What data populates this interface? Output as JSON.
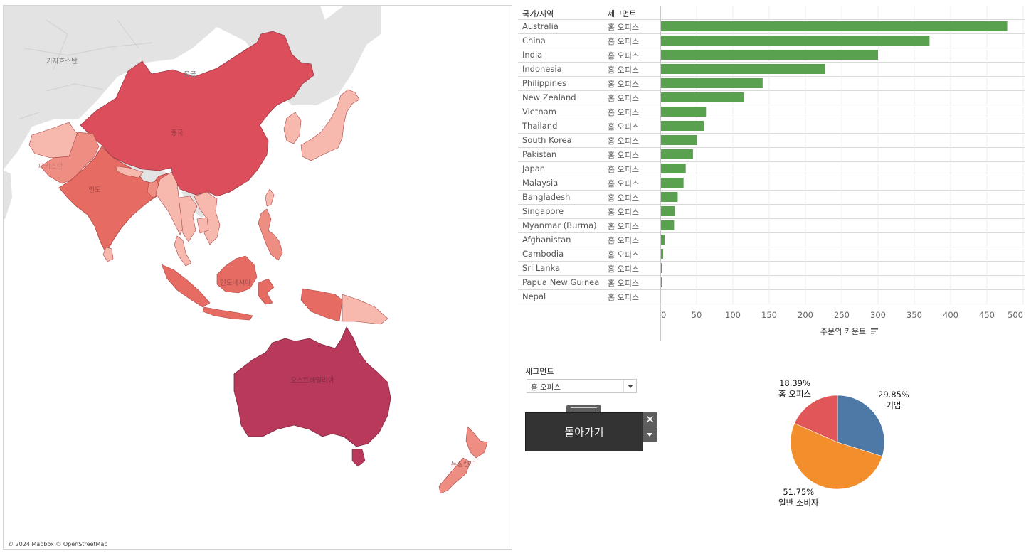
{
  "map": {
    "attribution": "© 2024 Mapbox © OpenStreetMap",
    "labels": {
      "kazakhstan": "카자흐스탄",
      "mongolia": "몽골",
      "china": "중국",
      "pakistan": "파키스탄",
      "india": "인도",
      "indonesia": "인도네시아",
      "australia": "오스트레일리아",
      "new_zealand": "뉴질랜드"
    },
    "colors": {
      "sea": "#ffffff",
      "other_land": "#e3e3e3",
      "very_high": "#b8395a",
      "high": "#dc4e5c",
      "mid": "#e56b63",
      "mid_low": "#ee8d82",
      "low": "#f7b8ae"
    }
  },
  "table": {
    "header_country": "국가/지역",
    "header_segment": "세그먼트",
    "axis_title": "주문의 카운트",
    "sort_icon": "sort-descending-icon",
    "bar_color": "#59a14f"
  },
  "chart_data": [
    {
      "type": "bar",
      "orientation": "horizontal",
      "categories": [
        "Australia",
        "China",
        "India",
        "Indonesia",
        "Philippines",
        "New Zealand",
        "Vietnam",
        "Thailand",
        "South Korea",
        "Pakistan",
        "Japan",
        "Malaysia",
        "Bangladesh",
        "Singapore",
        "Myanmar (Burma)",
        "Afghanistan",
        "Cambodia",
        "Sri Lanka",
        "Papua New Guinea",
        "Nepal"
      ],
      "segment": "홈 오피스",
      "values": [
        478,
        371,
        300,
        227,
        141,
        115,
        63,
        60,
        51,
        45,
        35,
        32,
        24,
        20,
        19,
        6,
        4,
        2,
        2,
        0
      ],
      "xlabel": "주문의 카운트",
      "xlim": [
        0,
        500
      ],
      "ticks": [
        0,
        50,
        100,
        150,
        200,
        250,
        300,
        350,
        400,
        450,
        500
      ],
      "grid": true
    },
    {
      "type": "pie",
      "slices": [
        {
          "name": "기업",
          "value": 29.85,
          "label": "29.85%",
          "color": "#4e79a7"
        },
        {
          "name": "일반 소비자",
          "value": 51.75,
          "label": "51.75%",
          "color": "#f28e2b"
        },
        {
          "name": "홈 오피스",
          "value": 18.39,
          "label": "18.39%",
          "color": "#e15759"
        }
      ]
    }
  ],
  "filter": {
    "label": "세그먼트",
    "value": "홈 오피스"
  },
  "back": {
    "label": "돌아가기",
    "close_glyph": "✕"
  }
}
